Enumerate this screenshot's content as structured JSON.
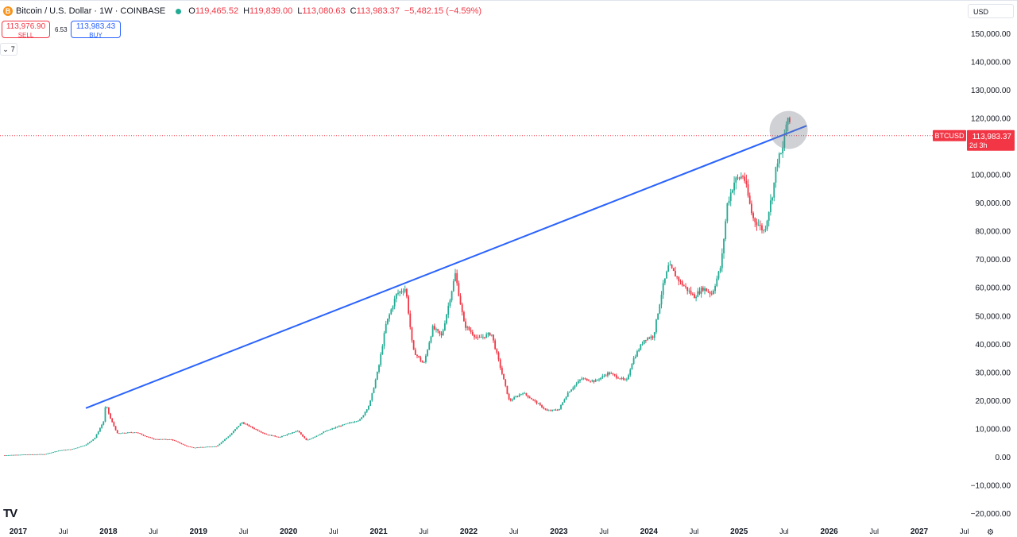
{
  "header": {
    "coin_icon": "B",
    "title": "Bitcoin / U.S. Dollar · 1W · COINBASE",
    "status_color": "#22ab94",
    "open_label": "O",
    "open": "119,465.52",
    "high_label": "H",
    "high": "119,839.00",
    "low_label": "L",
    "low": "113,080.63",
    "close_label": "C",
    "close": "113,983.37",
    "change": "−5,482.15 (−4.59%)"
  },
  "trade": {
    "sell_price": "113,976.90",
    "sell_label": "SELL",
    "spread": "6.53",
    "buy_price": "113,983.43",
    "buy_label": "BUY"
  },
  "indicators_toggle": {
    "icon": "chevron-down-icon",
    "count": "7"
  },
  "currency": {
    "value": "USD"
  },
  "logo": "TV",
  "settings_icon": "gear-icon",
  "colors": {
    "up": "#22ab94",
    "down": "#f23645",
    "trendline": "#2962ff",
    "accent_buy": "#2962ff",
    "accent_sell": "#f23645"
  },
  "chart_data": {
    "type": "candlestick",
    "symbol": "BTCUSD",
    "interval": "1W",
    "last_price_label": {
      "symbol": "BTCUSD",
      "price": "113,983.37",
      "countdown": "2d 3h"
    },
    "y_ticks": [
      "150,000.00",
      "140,000.00",
      "130,000.00",
      "120,000.00",
      "110,000.00",
      "100,000.00",
      "90,000.00",
      "80,000.00",
      "70,000.00",
      "60,000.00",
      "50,000.00",
      "40,000.00",
      "30,000.00",
      "20,000.00",
      "10,000.00",
      "0.00",
      "−10,000.00",
      "−20,000.00"
    ],
    "y_range": [
      -20000,
      150000
    ],
    "x_ticks": [
      {
        "label": "2017",
        "year": 2017.0,
        "major": true
      },
      {
        "label": "Jul",
        "year": 2017.5,
        "major": false
      },
      {
        "label": "2018",
        "year": 2018.0,
        "major": true
      },
      {
        "label": "Jul",
        "year": 2018.5,
        "major": false
      },
      {
        "label": "2019",
        "year": 2019.0,
        "major": true
      },
      {
        "label": "Jul",
        "year": 2019.5,
        "major": false
      },
      {
        "label": "2020",
        "year": 2020.0,
        "major": true
      },
      {
        "label": "Jul",
        "year": 2020.5,
        "major": false
      },
      {
        "label": "2021",
        "year": 2021.0,
        "major": true
      },
      {
        "label": "Jul",
        "year": 2021.5,
        "major": false
      },
      {
        "label": "2022",
        "year": 2022.0,
        "major": true
      },
      {
        "label": "Jul",
        "year": 2022.5,
        "major": false
      },
      {
        "label": "2023",
        "year": 2023.0,
        "major": true
      },
      {
        "label": "Jul",
        "year": 2023.5,
        "major": false
      },
      {
        "label": "2024",
        "year": 2024.0,
        "major": true
      },
      {
        "label": "Jul",
        "year": 2024.5,
        "major": false
      },
      {
        "label": "2025",
        "year": 2025.0,
        "major": true
      },
      {
        "label": "Jul",
        "year": 2025.5,
        "major": false
      },
      {
        "label": "2026",
        "year": 2026.0,
        "major": true
      },
      {
        "label": "Jul",
        "year": 2026.5,
        "major": false
      },
      {
        "label": "2027",
        "year": 2027.0,
        "major": true
      },
      {
        "label": "Jul",
        "year": 2027.5,
        "major": false
      }
    ],
    "price_path": [
      [
        2016.85,
        800
      ],
      [
        2017.0,
        1000
      ],
      [
        2017.3,
        1200
      ],
      [
        2017.45,
        2500
      ],
      [
        2017.6,
        3000
      ],
      [
        2017.75,
        4500
      ],
      [
        2017.85,
        7000
      ],
      [
        2017.95,
        13000
      ],
      [
        2017.97,
        19000
      ],
      [
        2018.02,
        14000
      ],
      [
        2018.1,
        8500
      ],
      [
        2018.3,
        9000
      ],
      [
        2018.5,
        6500
      ],
      [
        2018.7,
        6400
      ],
      [
        2018.87,
        4000
      ],
      [
        2018.95,
        3500
      ],
      [
        2019.2,
        4000
      ],
      [
        2019.35,
        8000
      ],
      [
        2019.48,
        12500
      ],
      [
        2019.6,
        10500
      ],
      [
        2019.75,
        8200
      ],
      [
        2019.9,
        7200
      ],
      [
        2020.1,
        9500
      ],
      [
        2020.2,
        6000
      ],
      [
        2020.4,
        9200
      ],
      [
        2020.55,
        11000
      ],
      [
        2020.8,
        13500
      ],
      [
        2020.9,
        19000
      ],
      [
        2021.0,
        32000
      ],
      [
        2021.08,
        47000
      ],
      [
        2021.2,
        58000
      ],
      [
        2021.3,
        60000
      ],
      [
        2021.38,
        38000
      ],
      [
        2021.5,
        33000
      ],
      [
        2021.6,
        46000
      ],
      [
        2021.7,
        43000
      ],
      [
        2021.85,
        65000
      ],
      [
        2021.95,
        47000
      ],
      [
        2022.1,
        42000
      ],
      [
        2022.25,
        44000
      ],
      [
        2022.35,
        32000
      ],
      [
        2022.45,
        20000
      ],
      [
        2022.6,
        23000
      ],
      [
        2022.75,
        19500
      ],
      [
        2022.87,
        16500
      ],
      [
        2023.0,
        17000
      ],
      [
        2023.1,
        23000
      ],
      [
        2023.25,
        28000
      ],
      [
        2023.4,
        27000
      ],
      [
        2023.55,
        30000
      ],
      [
        2023.75,
        27000
      ],
      [
        2023.82,
        34500
      ],
      [
        2023.95,
        42000
      ],
      [
        2024.05,
        43000
      ],
      [
        2024.15,
        60000
      ],
      [
        2024.22,
        68000
      ],
      [
        2024.35,
        62000
      ],
      [
        2024.5,
        57000
      ],
      [
        2024.6,
        60000
      ],
      [
        2024.7,
        58000
      ],
      [
        2024.8,
        68000
      ],
      [
        2024.87,
        90000
      ],
      [
        2024.95,
        98000
      ],
      [
        2025.05,
        100000
      ],
      [
        2025.15,
        85000
      ],
      [
        2025.28,
        80000
      ],
      [
        2025.38,
        95000
      ],
      [
        2025.42,
        105000
      ],
      [
        2025.48,
        108000
      ],
      [
        2025.52,
        118000
      ],
      [
        2025.56,
        119000
      ],
      [
        2025.58,
        113983
      ]
    ],
    "trendline": {
      "start": [
        2017.75,
        17500
      ],
      "end": [
        2025.75,
        117500
      ]
    },
    "highlight_circle": {
      "year": 2025.55,
      "price": 116000
    },
    "last_price": 113983.37
  }
}
